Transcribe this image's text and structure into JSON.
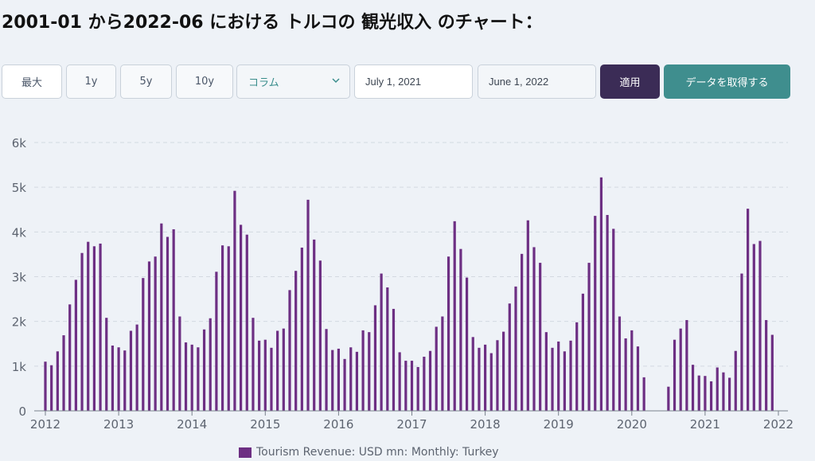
{
  "title": "2001-01 から2022-06 における トルコの 観光収入 のチャート：",
  "controls": {
    "range_buttons": [
      "最大",
      "1y",
      "5y",
      "10y"
    ],
    "chart_type": "コラム",
    "start_date": "July 1, 2021",
    "end_date": "June 1, 2022",
    "apply_label": "適用",
    "fetch_label": "データを取得する"
  },
  "colors": {
    "bar": "#6d2f83",
    "apply": "#3b2c56",
    "fetch": "#3f8e8e",
    "background": "#eef2f7"
  },
  "chart_data": {
    "type": "bar",
    "ylim": [
      0,
      6000
    ],
    "yticks": [
      0,
      1000,
      2000,
      3000,
      4000,
      5000,
      6000
    ],
    "ytick_labels": [
      "0",
      "1k",
      "2k",
      "3k",
      "4k",
      "5k",
      "6k"
    ],
    "xticks": [
      2012,
      2013,
      2014,
      2015,
      2016,
      2017,
      2018,
      2019,
      2020,
      2021,
      2022
    ],
    "grid": true,
    "legend_position": "bottom",
    "series": [
      {
        "name": "Tourism Revenue: USD mn: Monthly: Turkey",
        "x": [
          "2012-01",
          "2012-02",
          "2012-03",
          "2012-04",
          "2012-05",
          "2012-06",
          "2012-07",
          "2012-08",
          "2012-09",
          "2012-10",
          "2012-11",
          "2012-12",
          "2013-01",
          "2013-02",
          "2013-03",
          "2013-04",
          "2013-05",
          "2013-06",
          "2013-07",
          "2013-08",
          "2013-09",
          "2013-10",
          "2013-11",
          "2013-12",
          "2014-01",
          "2014-02",
          "2014-03",
          "2014-04",
          "2014-05",
          "2014-06",
          "2014-07",
          "2014-08",
          "2014-09",
          "2014-10",
          "2014-11",
          "2014-12",
          "2015-01",
          "2015-02",
          "2015-03",
          "2015-04",
          "2015-05",
          "2015-06",
          "2015-07",
          "2015-08",
          "2015-09",
          "2015-10",
          "2015-11",
          "2015-12",
          "2016-01",
          "2016-02",
          "2016-03",
          "2016-04",
          "2016-05",
          "2016-06",
          "2016-07",
          "2016-08",
          "2016-09",
          "2016-10",
          "2016-11",
          "2016-12",
          "2017-01",
          "2017-02",
          "2017-03",
          "2017-04",
          "2017-05",
          "2017-06",
          "2017-07",
          "2017-08",
          "2017-09",
          "2017-10",
          "2017-11",
          "2017-12",
          "2018-01",
          "2018-02",
          "2018-03",
          "2018-04",
          "2018-05",
          "2018-06",
          "2018-07",
          "2018-08",
          "2018-09",
          "2018-10",
          "2018-11",
          "2018-12",
          "2019-01",
          "2019-02",
          "2019-03",
          "2019-04",
          "2019-05",
          "2019-06",
          "2019-07",
          "2019-08",
          "2019-09",
          "2019-10",
          "2019-11",
          "2019-12",
          "2020-01",
          "2020-02",
          "2020-03",
          "2020-04",
          "2020-05",
          "2020-06",
          "2020-07",
          "2020-08",
          "2020-09",
          "2020-10",
          "2020-11",
          "2020-12",
          "2021-01",
          "2021-02",
          "2021-03",
          "2021-04",
          "2021-05",
          "2021-06",
          "2021-07",
          "2021-08",
          "2021-09",
          "2021-10",
          "2021-11",
          "2021-12"
        ],
        "values": [
          1100,
          1020,
          1330,
          1690,
          2380,
          2930,
          3530,
          3780,
          3680,
          3740,
          2080,
          1460,
          1420,
          1350,
          1790,
          1930,
          2970,
          3340,
          3450,
          4190,
          3890,
          4060,
          2110,
          1530,
          1480,
          1420,
          1820,
          2070,
          3110,
          3700,
          3680,
          4920,
          4160,
          3940,
          2080,
          1570,
          1590,
          1410,
          1790,
          1840,
          2700,
          3130,
          3650,
          4720,
          3830,
          3360,
          1830,
          1360,
          1390,
          1160,
          1420,
          1320,
          1800,
          1760,
          2360,
          3070,
          2760,
          2280,
          1310,
          1120,
          1120,
          980,
          1210,
          1340,
          1880,
          2110,
          3450,
          4240,
          3620,
          2980,
          1650,
          1410,
          1480,
          1290,
          1580,
          1770,
          2400,
          2780,
          3510,
          4260,
          3660,
          3310,
          1760,
          1410,
          1550,
          1330,
          1570,
          1980,
          2620,
          3310,
          4360,
          5220,
          4380,
          4070,
          2110,
          1620,
          1800,
          1440,
          750,
          null,
          null,
          null,
          540,
          1590,
          1840,
          2030,
          1030,
          790,
          780,
          660,
          970,
          860,
          740,
          1340,
          3070,
          4520,
          3730,
          3800,
          2030,
          1700
        ]
      }
    ]
  }
}
